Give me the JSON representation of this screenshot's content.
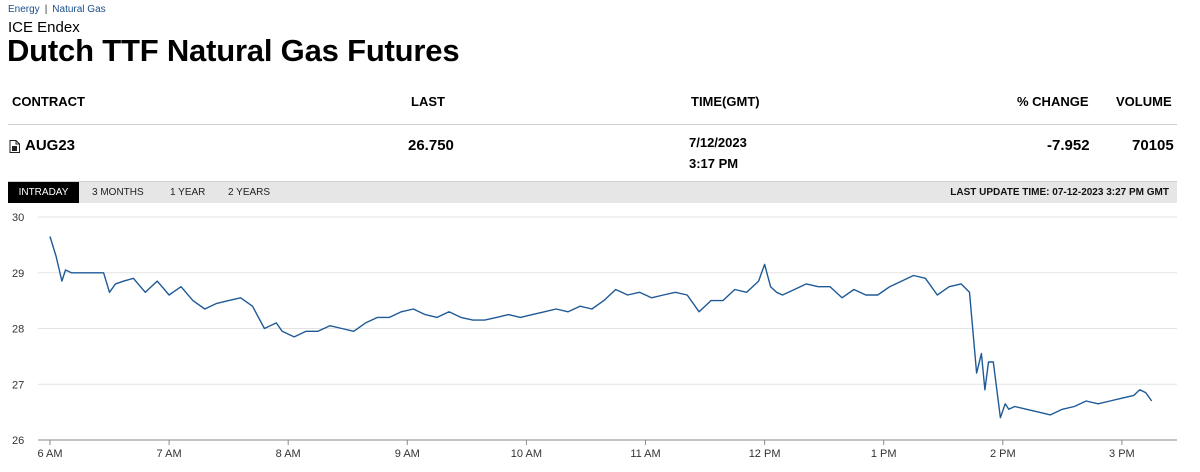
{
  "breadcrumb": {
    "item1": "Energy",
    "separator": "|",
    "item2": "Natural Gas"
  },
  "exchange": "ICE Endex",
  "title": "Dutch TTF Natural Gas Futures",
  "table": {
    "headers": {
      "contract": "CONTRACT",
      "last": "LAST",
      "time": "TIME(GMT)",
      "change": "% CHANGE",
      "volume": "VOLUME"
    },
    "row": {
      "contract": "AUG23",
      "last": "26.750",
      "date": "7/12/2023",
      "time": "3:17 PM",
      "change": "-7.952",
      "volume": "70105"
    }
  },
  "tabs": {
    "intraday": "INTRADAY",
    "three_months": "3 MONTHS",
    "one_year": "1 YEAR",
    "two_years": "2 YEARS"
  },
  "last_update": "LAST UPDATE TIME: 07-12-2023 3:27 PM GMT",
  "colors": {
    "line": "#1f5a96",
    "tab_active": "#000000",
    "tab_bar": "#e6e6e6",
    "link": "#1a4f8b"
  },
  "chart_data": {
    "type": "line",
    "title": "",
    "xlabel": "",
    "ylabel": "",
    "ylim": [
      26,
      30
    ],
    "yticks": [
      "30",
      "29",
      "28",
      "27",
      "26"
    ],
    "xticks": [
      "6 AM",
      "7 AM",
      "8 AM",
      "9 AM",
      "10 AM",
      "11 AM",
      "12 PM",
      "1 PM",
      "2 PM",
      "3 PM"
    ],
    "grid": "horizontal",
    "x_hours": [
      6.0,
      6.05,
      6.1,
      6.13,
      6.18,
      6.25,
      6.35,
      6.45,
      6.5,
      6.55,
      6.62,
      6.7,
      6.8,
      6.9,
      7.0,
      7.1,
      7.2,
      7.3,
      7.4,
      7.5,
      7.6,
      7.7,
      7.8,
      7.9,
      7.95,
      8.0,
      8.05,
      8.15,
      8.25,
      8.35,
      8.45,
      8.55,
      8.65,
      8.75,
      8.85,
      8.95,
      9.05,
      9.15,
      9.25,
      9.35,
      9.45,
      9.55,
      9.65,
      9.75,
      9.85,
      9.95,
      10.05,
      10.15,
      10.25,
      10.35,
      10.45,
      10.55,
      10.65,
      10.75,
      10.85,
      10.95,
      11.05,
      11.15,
      11.25,
      11.35,
      11.45,
      11.55,
      11.65,
      11.75,
      11.85,
      11.95,
      12.0,
      12.05,
      12.1,
      12.15,
      12.25,
      12.35,
      12.45,
      12.55,
      12.65,
      12.75,
      12.85,
      12.95,
      13.05,
      13.15,
      13.25,
      13.35,
      13.45,
      13.55,
      13.65,
      13.72,
      13.78,
      13.82,
      13.85,
      13.88,
      13.92,
      13.98,
      14.02,
      14.05,
      14.1,
      14.2,
      14.3,
      14.4,
      14.5,
      14.6,
      14.7,
      14.8,
      14.9,
      15.0,
      15.1,
      15.15,
      15.2,
      15.25
    ],
    "values": [
      29.65,
      29.3,
      28.85,
      29.05,
      29.0,
      29.0,
      29.0,
      29.0,
      28.65,
      28.8,
      28.85,
      28.9,
      28.65,
      28.85,
      28.6,
      28.75,
      28.5,
      28.35,
      28.45,
      28.5,
      28.55,
      28.4,
      28.0,
      28.1,
      27.95,
      27.9,
      27.85,
      27.95,
      27.95,
      28.05,
      28.0,
      27.95,
      28.1,
      28.2,
      28.2,
      28.3,
      28.35,
      28.25,
      28.2,
      28.3,
      28.2,
      28.15,
      28.15,
      28.2,
      28.25,
      28.2,
      28.25,
      28.3,
      28.35,
      28.3,
      28.4,
      28.35,
      28.5,
      28.7,
      28.6,
      28.65,
      28.55,
      28.6,
      28.65,
      28.6,
      28.3,
      28.5,
      28.5,
      28.7,
      28.65,
      28.85,
      29.15,
      28.75,
      28.65,
      28.6,
      28.7,
      28.8,
      28.75,
      28.75,
      28.55,
      28.7,
      28.6,
      28.6,
      28.75,
      28.85,
      28.95,
      28.9,
      28.6,
      28.75,
      28.8,
      28.65,
      27.2,
      27.55,
      26.9,
      27.4,
      27.4,
      26.4,
      26.65,
      26.55,
      26.6,
      26.55,
      26.5,
      26.45,
      26.55,
      26.6,
      26.7,
      26.65,
      26.7,
      26.75,
      26.8,
      26.9,
      26.85,
      26.7
    ]
  }
}
